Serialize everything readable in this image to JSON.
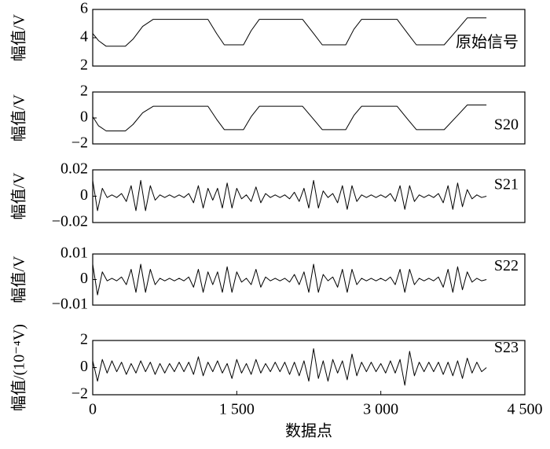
{
  "chart_data": [
    {
      "type": "line",
      "ylabel": "幅值/V",
      "annotation": "原始信号",
      "color": "#000000",
      "x": [
        0,
        60,
        140,
        340,
        420,
        520,
        630,
        1200,
        1290,
        1370,
        1570,
        1650,
        1735,
        2185,
        2300,
        2390,
        2635,
        2720,
        2800,
        3170,
        3280,
        3370,
        3660,
        3800,
        3900,
        4100
      ],
      "values": [
        4.3,
        3.8,
        3.4,
        3.4,
        3.9,
        4.8,
        5.3,
        5.3,
        4.3,
        3.5,
        3.5,
        4.5,
        5.3,
        5.3,
        4.3,
        3.5,
        3.5,
        4.6,
        5.3,
        5.3,
        4.3,
        3.5,
        3.5,
        4.6,
        5.4,
        5.4
      ],
      "xlim": [
        0,
        4500
      ],
      "ylim": [
        2,
        6
      ],
      "yticks": [
        2,
        4,
        6
      ]
    },
    {
      "type": "line",
      "ylabel": "幅值/V",
      "annotation": "S20",
      "color": "#000000",
      "x": [
        0,
        60,
        140,
        340,
        420,
        520,
        630,
        1200,
        1290,
        1370,
        1570,
        1650,
        1735,
        2185,
        2300,
        2390,
        2635,
        2720,
        2800,
        3170,
        3280,
        3370,
        3660,
        3800,
        3900,
        4100
      ],
      "values": [
        0.1,
        -0.6,
        -1,
        -1,
        -0.5,
        0.4,
        0.9,
        0.9,
        -0.1,
        -0.9,
        -0.9,
        0.1,
        0.9,
        0.9,
        -0.1,
        -0.9,
        -0.9,
        0.2,
        0.9,
        0.9,
        -0.1,
        -0.9,
        -0.9,
        0.2,
        1,
        1
      ],
      "xlim": [
        0,
        4500
      ],
      "ylim": [
        -2,
        2
      ],
      "yticks": [
        {
          "value": -2,
          "label": "−2"
        },
        0,
        2
      ]
    },
    {
      "type": "line",
      "ylabel": "幅值/V",
      "annotation": "S21",
      "color": "#000000",
      "x": [
        0,
        50,
        100,
        150,
        200,
        250,
        300,
        350,
        400,
        450,
        500,
        550,
        600,
        650,
        700,
        750,
        800,
        850,
        900,
        950,
        1000,
        1050,
        1100,
        1150,
        1200,
        1250,
        1300,
        1350,
        1400,
        1450,
        1500,
        1550,
        1600,
        1650,
        1700,
        1750,
        1800,
        1850,
        1900,
        1950,
        2000,
        2050,
        2100,
        2150,
        2200,
        2250,
        2300,
        2350,
        2400,
        2450,
        2500,
        2550,
        2600,
        2650,
        2700,
        2750,
        2800,
        2850,
        2900,
        2950,
        3000,
        3050,
        3100,
        3150,
        3200,
        3250,
        3300,
        3350,
        3400,
        3450,
        3500,
        3550,
        3600,
        3650,
        3700,
        3750,
        3800,
        3850,
        3900,
        3950,
        4000,
        4050,
        4100
      ],
      "values": [
        0.012,
        -0.011,
        0.006,
        -0.001,
        0.001,
        -0.001,
        0.002,
        -0.004,
        0.008,
        -0.011,
        0.012,
        -0.011,
        0.008,
        -0.003,
        0.001,
        -0.001,
        0.001,
        -0.001,
        0.001,
        -0.001,
        0.002,
        -0.005,
        0.008,
        -0.009,
        0.006,
        -0.003,
        0.006,
        -0.009,
        0.01,
        -0.009,
        0.006,
        -0.002,
        0.001,
        -0.004,
        0.007,
        -0.005,
        0.002,
        -0.001,
        0.001,
        -0.001,
        0.001,
        -0.002,
        0.003,
        -0.004,
        0.006,
        -0.009,
        0.012,
        -0.009,
        0.004,
        -0.001,
        0.002,
        -0.005,
        0.008,
        -0.01,
        0.008,
        -0.004,
        0.001,
        -0.001,
        0.001,
        -0.001,
        0.001,
        -0.001,
        0.002,
        -0.004,
        0.008,
        -0.01,
        0.008,
        -0.004,
        0.001,
        -0.001,
        0.001,
        -0.001,
        0.002,
        -0.005,
        0.008,
        -0.01,
        0.01,
        -0.008,
        0.005,
        -0.002,
        0.001,
        -0.001,
        0
      ],
      "xlim": [
        0,
        4500
      ],
      "ylim": [
        -0.02,
        0.02
      ],
      "yticks": [
        {
          "value": -0.02,
          "label": "−0.02"
        },
        0,
        0.02
      ]
    },
    {
      "type": "line",
      "ylabel": "幅值/V",
      "annotation": "S22",
      "color": "#000000",
      "x": [
        0,
        50,
        100,
        150,
        200,
        250,
        300,
        350,
        400,
        450,
        500,
        550,
        600,
        650,
        700,
        750,
        800,
        850,
        900,
        950,
        1000,
        1050,
        1100,
        1150,
        1200,
        1250,
        1300,
        1350,
        1400,
        1450,
        1500,
        1550,
        1600,
        1650,
        1700,
        1750,
        1800,
        1850,
        1900,
        1950,
        2000,
        2050,
        2100,
        2150,
        2200,
        2250,
        2300,
        2350,
        2400,
        2450,
        2500,
        2550,
        2600,
        2650,
        2700,
        2750,
        2800,
        2850,
        2900,
        2950,
        3000,
        3050,
        3100,
        3150,
        3200,
        3250,
        3300,
        3350,
        3400,
        3450,
        3500,
        3550,
        3600,
        3650,
        3700,
        3750,
        3800,
        3850,
        3900,
        3950,
        4000,
        4050,
        4100
      ],
      "values": [
        0.006,
        -0.006,
        0.003,
        -0.0005,
        0.0005,
        -0.0005,
        0.001,
        -0.002,
        0.004,
        -0.005,
        0.006,
        -0.005,
        0.004,
        -0.002,
        0.0005,
        -0.0005,
        0.0005,
        -0.0005,
        0.0005,
        -0.0005,
        0.001,
        -0.003,
        0.004,
        -0.005,
        0.003,
        -0.002,
        0.003,
        -0.005,
        0.005,
        -0.005,
        0.003,
        -0.001,
        0.0005,
        -0.002,
        0.004,
        -0.003,
        0.001,
        -0.0005,
        0.0005,
        -0.0005,
        0.0005,
        -0.001,
        0.002,
        -0.002,
        0.003,
        -0.005,
        0.006,
        -0.005,
        0.002,
        -0.0005,
        0.001,
        -0.003,
        0.004,
        -0.005,
        0.004,
        -0.002,
        0.0005,
        -0.0005,
        0.0005,
        -0.0005,
        0.0005,
        -0.0005,
        0.001,
        -0.002,
        0.004,
        -0.005,
        0.004,
        -0.002,
        0.0005,
        -0.0005,
        0.0005,
        -0.0005,
        0.001,
        -0.003,
        0.004,
        -0.005,
        0.005,
        -0.004,
        0.003,
        -0.001,
        0.0005,
        -0.0005,
        0
      ],
      "xlim": [
        0,
        4500
      ],
      "ylim": [
        -0.01,
        0.01
      ],
      "yticks": [
        {
          "value": -0.01,
          "label": "−0.01"
        },
        0,
        0.01
      ]
    },
    {
      "type": "line",
      "ylabel": "幅值/(10⁻⁴V)",
      "annotation": "S23",
      "xlabel": "数据点",
      "color": "#000000",
      "x": [
        0,
        50,
        100,
        150,
        200,
        250,
        300,
        350,
        400,
        450,
        500,
        550,
        600,
        650,
        700,
        750,
        800,
        850,
        900,
        950,
        1000,
        1050,
        1100,
        1150,
        1200,
        1250,
        1300,
        1350,
        1400,
        1450,
        1500,
        1550,
        1600,
        1650,
        1700,
        1750,
        1800,
        1850,
        1900,
        1950,
        2000,
        2050,
        2100,
        2150,
        2200,
        2250,
        2300,
        2350,
        2400,
        2450,
        2500,
        2550,
        2600,
        2650,
        2700,
        2750,
        2800,
        2850,
        2900,
        2950,
        3000,
        3050,
        3100,
        3150,
        3200,
        3250,
        3300,
        3350,
        3400,
        3450,
        3500,
        3550,
        3600,
        3650,
        3700,
        3750,
        3800,
        3850,
        3900,
        3950,
        4000,
        4050,
        4100
      ],
      "values": [
        0.5,
        -1.0,
        0.6,
        -0.4,
        0.5,
        -0.3,
        0.4,
        -0.5,
        0.3,
        -0.4,
        0.5,
        -0.3,
        0.4,
        -0.5,
        0.3,
        -0.4,
        0.3,
        -0.3,
        0.4,
        -0.3,
        0.4,
        -0.5,
        0.8,
        -0.6,
        0.4,
        -0.3,
        0.5,
        -0.4,
        0.3,
        -0.8,
        0.6,
        -0.4,
        0.3,
        -0.5,
        0.6,
        -0.4,
        0.3,
        -0.3,
        0.4,
        -0.3,
        0.4,
        -0.5,
        0.4,
        -0.6,
        0.5,
        -1.0,
        1.4,
        -0.8,
        0.5,
        -1.0,
        0.6,
        -0.4,
        0.5,
        -0.9,
        1.0,
        -0.6,
        0.4,
        -0.3,
        0.4,
        -0.3,
        0.3,
        -0.4,
        0.5,
        -0.4,
        0.6,
        -1.3,
        1.2,
        -0.6,
        0.4,
        -0.3,
        0.4,
        -0.3,
        0.4,
        -0.5,
        0.4,
        -0.6,
        0.5,
        -0.8,
        0.7,
        -0.4,
        0.4,
        -0.3,
        0
      ],
      "xlim": [
        0,
        4500
      ],
      "ylim": [
        -2,
        2
      ],
      "yticks": [
        {
          "value": -2,
          "label": "−2"
        },
        0,
        2
      ],
      "xticks": [
        0,
        {
          "value": 1500,
          "label": "1 500"
        },
        {
          "value": 3000,
          "label": "3 000"
        },
        {
          "value": 4500,
          "label": "4 500"
        }
      ]
    }
  ]
}
